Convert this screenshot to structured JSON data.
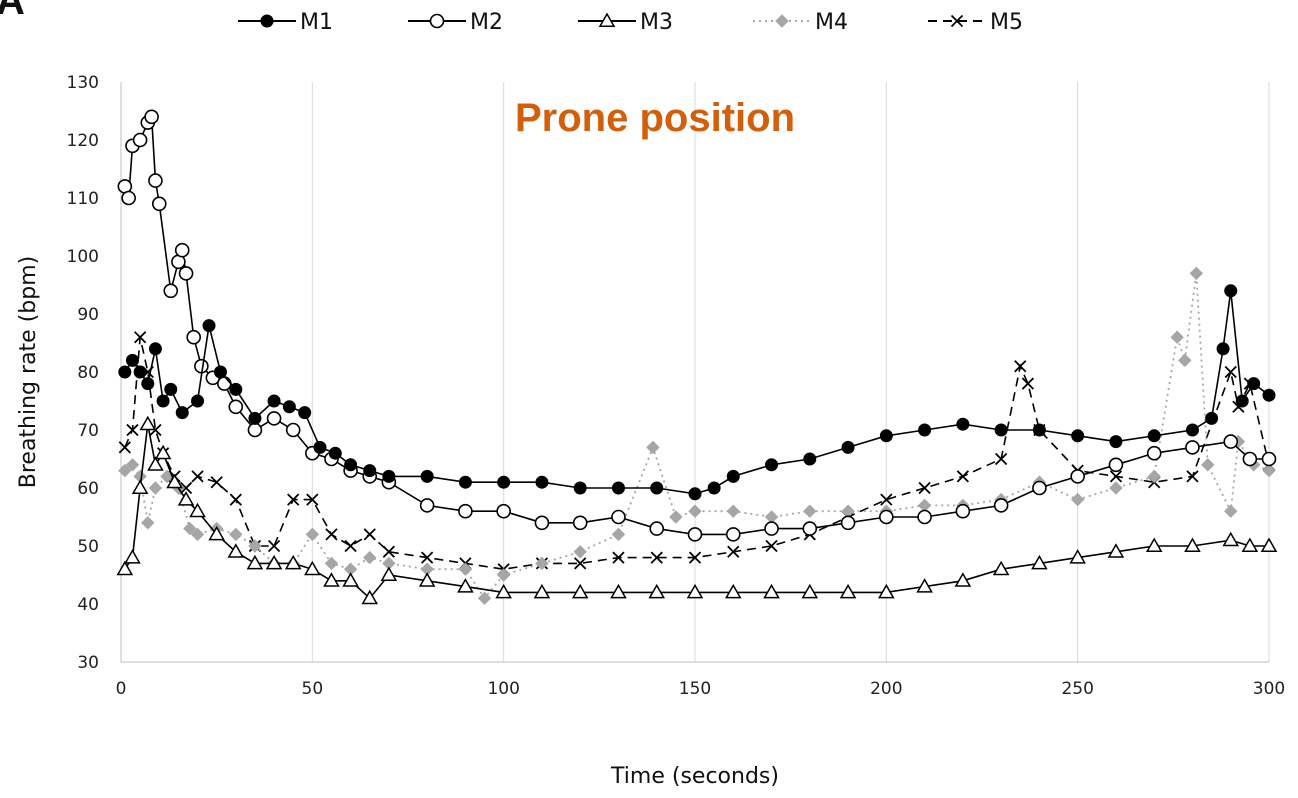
{
  "chart_data": {
    "type": "line",
    "panel_label": "A",
    "annotation": "Prone position",
    "xlabel": "Time (seconds)",
    "ylabel": "Breathing rate (bpm)",
    "xlim": [
      0,
      300
    ],
    "ylim": [
      30,
      130
    ],
    "xticks": [
      0,
      50,
      100,
      150,
      200,
      250,
      300
    ],
    "yticks": [
      30,
      40,
      50,
      60,
      70,
      80,
      90,
      100,
      110,
      120,
      130
    ],
    "grid": "vertical",
    "legend_position": "top",
    "series": [
      {
        "name": "M1",
        "color": "#000000",
        "line": "solid",
        "marker": "filled-circle",
        "x": [
          1,
          3,
          5,
          7,
          9,
          11,
          13,
          16,
          20,
          23,
          26,
          30,
          35,
          40,
          44,
          48,
          52,
          56,
          60,
          65,
          70,
          80,
          90,
          100,
          110,
          120,
          130,
          140,
          150,
          155,
          160,
          170,
          180,
          190,
          200,
          210,
          220,
          230,
          240,
          250,
          260,
          270,
          280,
          285,
          288,
          290,
          293,
          296,
          300
        ],
        "y": [
          80,
          82,
          80,
          78,
          84,
          75,
          77,
          73,
          75,
          88,
          80,
          77,
          72,
          75,
          74,
          73,
          67,
          66,
          64,
          63,
          62,
          62,
          61,
          61,
          61,
          60,
          60,
          60,
          59,
          60,
          62,
          64,
          65,
          67,
          69,
          70,
          71,
          70,
          70,
          69,
          68,
          69,
          70,
          72,
          84,
          94,
          75,
          78,
          76
        ]
      },
      {
        "name": "M2",
        "color": "#000000",
        "line": "solid",
        "marker": "open-circle",
        "x": [
          1,
          2,
          3,
          5,
          7,
          8,
          9,
          10,
          13,
          15,
          16,
          17,
          19,
          21,
          24,
          27,
          30,
          35,
          40,
          45,
          50,
          55,
          60,
          65,
          70,
          80,
          90,
          100,
          110,
          120,
          130,
          140,
          150,
          160,
          170,
          180,
          190,
          200,
          210,
          220,
          230,
          240,
          250,
          260,
          270,
          280,
          290,
          295,
          300
        ],
        "y": [
          112,
          110,
          119,
          120,
          123,
          124,
          113,
          109,
          94,
          99,
          101,
          97,
          86,
          81,
          79,
          78,
          74,
          70,
          72,
          70,
          66,
          65,
          63,
          62,
          61,
          57,
          56,
          56,
          54,
          54,
          55,
          53,
          52,
          52,
          53,
          53,
          54,
          55,
          55,
          56,
          57,
          60,
          62,
          64,
          66,
          67,
          68,
          65,
          65
        ]
      },
      {
        "name": "M3",
        "color": "#000000",
        "line": "solid",
        "marker": "open-triangle",
        "x": [
          1,
          3,
          5,
          7,
          9,
          11,
          14,
          17,
          20,
          25,
          30,
          35,
          40,
          45,
          50,
          55,
          60,
          65,
          70,
          80,
          90,
          100,
          110,
          120,
          130,
          140,
          150,
          160,
          170,
          180,
          190,
          200,
          210,
          220,
          230,
          240,
          250,
          260,
          270,
          280,
          290,
          295,
          300
        ],
        "y": [
          46,
          48,
          60,
          71,
          64,
          66,
          61,
          58,
          56,
          52,
          49,
          47,
          47,
          47,
          46,
          44,
          44,
          41,
          45,
          44,
          43,
          42,
          42,
          42,
          42,
          42,
          42,
          42,
          42,
          42,
          42,
          42,
          43,
          44,
          46,
          47,
          48,
          49,
          50,
          50,
          51,
          50,
          50
        ]
      },
      {
        "name": "M4",
        "color": "#a6a6a6",
        "line": "dotted",
        "marker": "filled-diamond",
        "x": [
          1,
          3,
          5,
          7,
          9,
          12,
          15,
          18,
          20,
          25,
          30,
          35,
          40,
          45,
          50,
          55,
          60,
          65,
          70,
          80,
          90,
          95,
          100,
          110,
          120,
          130,
          139,
          145,
          150,
          160,
          170,
          180,
          190,
          200,
          210,
          220,
          230,
          240,
          250,
          260,
          270,
          276,
          278,
          281,
          284,
          290,
          292,
          296,
          300
        ],
        "y": [
          63,
          64,
          62,
          54,
          60,
          62,
          60,
          53,
          52,
          53,
          52,
          50,
          47,
          47,
          52,
          47,
          46,
          48,
          47,
          46,
          46,
          41,
          45,
          47,
          49,
          52,
          67,
          55,
          56,
          56,
          55,
          56,
          56,
          56,
          57,
          57,
          58,
          61,
          58,
          60,
          62,
          86,
          82,
          97,
          64,
          56,
          68,
          64,
          63
        ]
      },
      {
        "name": "M5",
        "color": "#000000",
        "line": "dashed",
        "marker": "x",
        "x": [
          1,
          3,
          5,
          7,
          9,
          11,
          14,
          17,
          20,
          25,
          30,
          35,
          40,
          45,
          50,
          55,
          60,
          65,
          70,
          80,
          90,
          100,
          110,
          120,
          130,
          140,
          150,
          160,
          170,
          180,
          190,
          200,
          210,
          220,
          230,
          235,
          237,
          240,
          250,
          260,
          270,
          280,
          290,
          292,
          295,
          300
        ],
        "y": [
          67,
          70,
          86,
          80,
          70,
          66,
          62,
          60,
          62,
          61,
          58,
          50,
          50,
          58,
          58,
          52,
          50,
          52,
          49,
          48,
          47,
          46,
          47,
          47,
          48,
          48,
          48,
          49,
          50,
          52,
          55,
          58,
          60,
          62,
          65,
          81,
          78,
          70,
          63,
          62,
          61,
          62,
          80,
          74,
          78,
          64
        ]
      }
    ]
  }
}
